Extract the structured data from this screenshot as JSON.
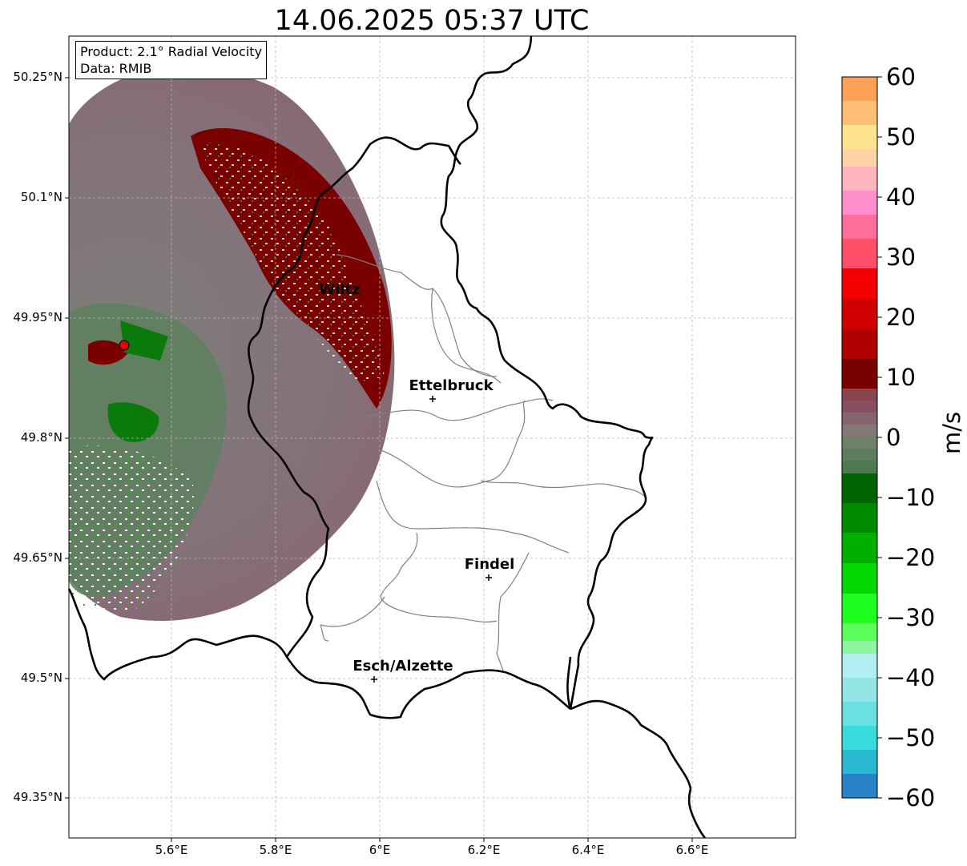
{
  "title": "14.06.2025 05:37 UTC",
  "info_box": {
    "product": "Product: 2.1° Radial Velocity",
    "source": "Data: RMIB"
  },
  "axes": {
    "lat_ticks": [
      "50.25°N",
      "50.1°N",
      "49.95°N",
      "49.8°N",
      "49.65°N",
      "49.5°N",
      "49.35°N"
    ],
    "lon_ticks": [
      "5.6°E",
      "5.8°E",
      "6°E",
      "6.2°E",
      "6.4°E",
      "6.6°E"
    ],
    "grid": true
  },
  "cities": [
    {
      "name": "Wiltz"
    },
    {
      "name": "Ettelbruck"
    },
    {
      "name": "Findel"
    },
    {
      "name": "Esch/Alzette"
    }
  ],
  "colorbar": {
    "unit": "m/s",
    "ticks": [
      "60",
      "50",
      "40",
      "30",
      "20",
      "10",
      "0",
      "−10",
      "−20",
      "−30",
      "−40",
      "−50",
      "−60"
    ],
    "range": [
      -60,
      60
    ]
  },
  "colors": {
    "positive_strong": "#7a0000",
    "positive_weak": "#8a5a66",
    "neutral": "#85757c",
    "negative_weak": "#5e8060",
    "negative_strong": "#007a00",
    "radar_site": "#e00000"
  }
}
